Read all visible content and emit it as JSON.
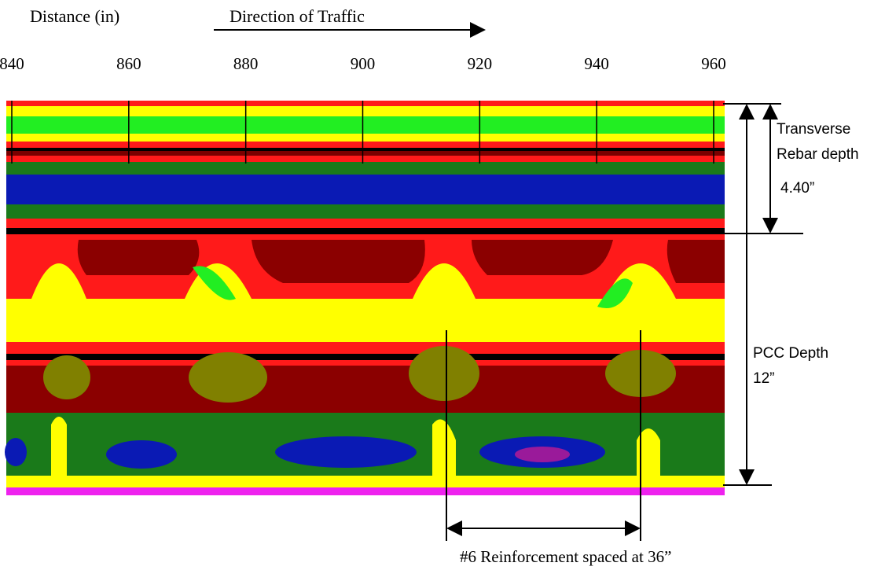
{
  "header": {
    "distance_label": "Distance (in)",
    "direction_label": "Direction of Traffic"
  },
  "distance_axis": {
    "ticks": [
      840,
      860,
      880,
      900,
      920,
      940,
      960
    ]
  },
  "annotations": {
    "rebar_label_1": "Transverse",
    "rebar_label_2": "Rebar depth",
    "rebar_depth": "4.40”",
    "pcc_label": "PCC Depth",
    "pcc_depth": "12”",
    "spacing_label": "#6 Reinforcement spaced at 36”"
  }
}
